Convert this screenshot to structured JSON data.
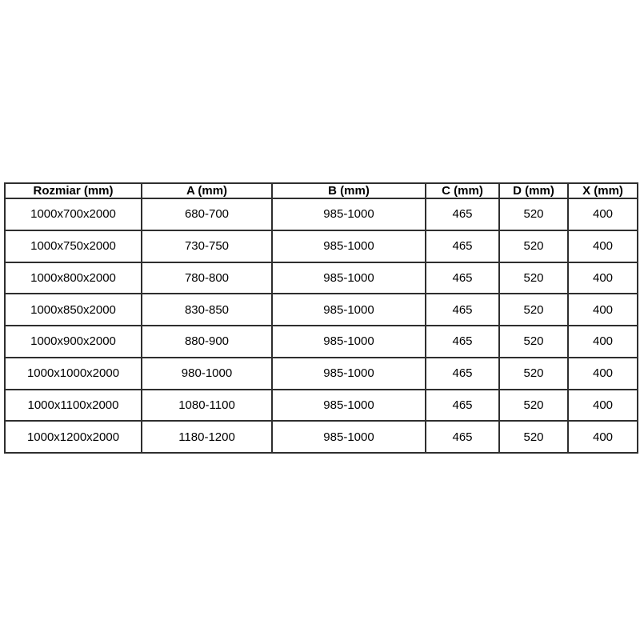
{
  "colors": {
    "border": "#2e2e2e",
    "text": "#000000",
    "header_bg": "#ffffff",
    "page_bg": "#ffffff"
  },
  "table": {
    "columns": [
      "Rozmiar (mm)",
      "A (mm)",
      "B (mm)",
      "C (mm)",
      "D (mm)",
      "X (mm)"
    ],
    "rows": [
      [
        "1000x700x2000",
        "680-700",
        "985-1000",
        "465",
        "520",
        "400"
      ],
      [
        "1000x750x2000",
        "730-750",
        "985-1000",
        "465",
        "520",
        "400"
      ],
      [
        "1000x800x2000",
        "780-800",
        "985-1000",
        "465",
        "520",
        "400"
      ],
      [
        "1000x850x2000",
        "830-850",
        "985-1000",
        "465",
        "520",
        "400"
      ],
      [
        "1000x900x2000",
        "880-900",
        "985-1000",
        "465",
        "520",
        "400"
      ],
      [
        "1000x1000x2000",
        "980-1000",
        "985-1000",
        "465",
        "520",
        "400"
      ],
      [
        "1000x1100x2000",
        "1080-1100",
        "985-1000",
        "465",
        "520",
        "400"
      ],
      [
        "1000x1200x2000",
        "1180-1200",
        "985-1000",
        "465",
        "520",
        "400"
      ]
    ]
  }
}
